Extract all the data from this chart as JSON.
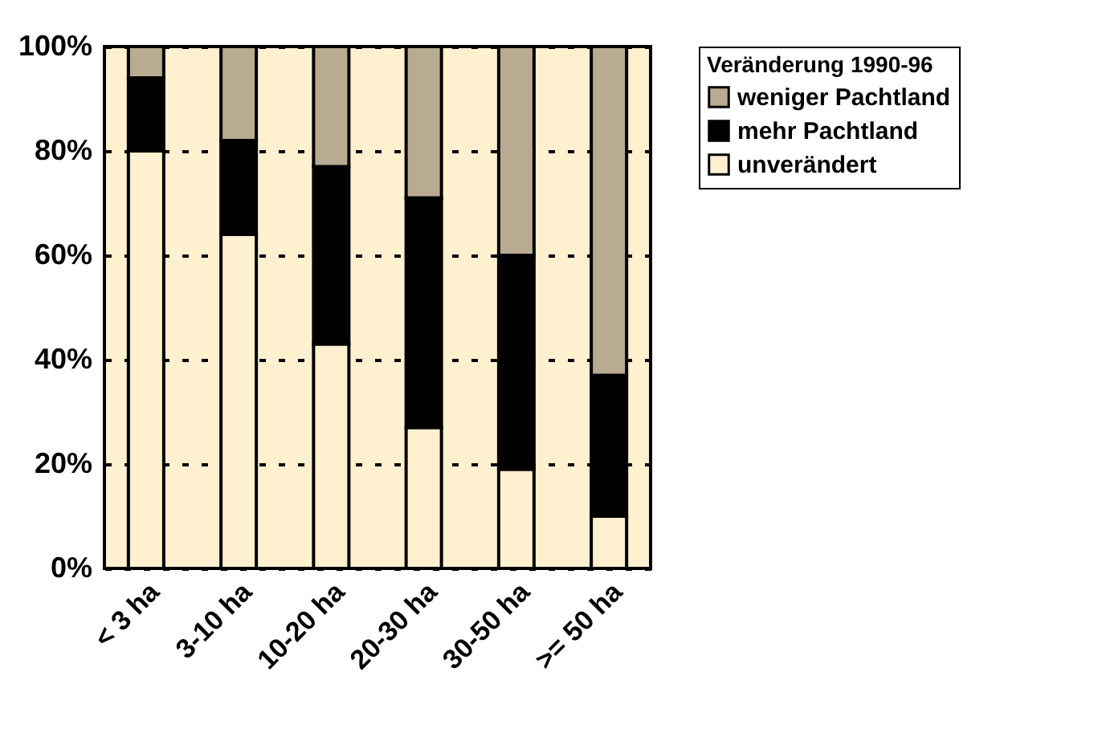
{
  "chart_data": {
    "type": "bar",
    "stacked": true,
    "categories": [
      "< 3 ha",
      "3-10 ha",
      "10-20 ha",
      "20-30 ha",
      "30-50 ha",
      ">= 50 ha"
    ],
    "series": [
      {
        "name": "unverändert",
        "color": "#fff0d0",
        "values": [
          80,
          64,
          43,
          27,
          19,
          10
        ]
      },
      {
        "name": "mehr Pachtland",
        "color": "#000000",
        "values": [
          14,
          18,
          34,
          44,
          41,
          27
        ]
      },
      {
        "name": "weniger Pachtland",
        "color": "#b8ab92",
        "values": [
          6,
          18,
          23,
          29,
          40,
          63
        ]
      }
    ],
    "legend_title": "Veränderung 1990-96",
    "legend": "right",
    "ylim": [
      0,
      100
    ],
    "yticks": [
      {
        "value": 0,
        "label": "0%"
      },
      {
        "value": 20,
        "label": "20%"
      },
      {
        "value": 40,
        "label": "40%"
      },
      {
        "value": 60,
        "label": "60%"
      },
      {
        "value": 80,
        "label": "80%"
      },
      {
        "value": 100,
        "label": "100%"
      }
    ],
    "grid": "y"
  }
}
